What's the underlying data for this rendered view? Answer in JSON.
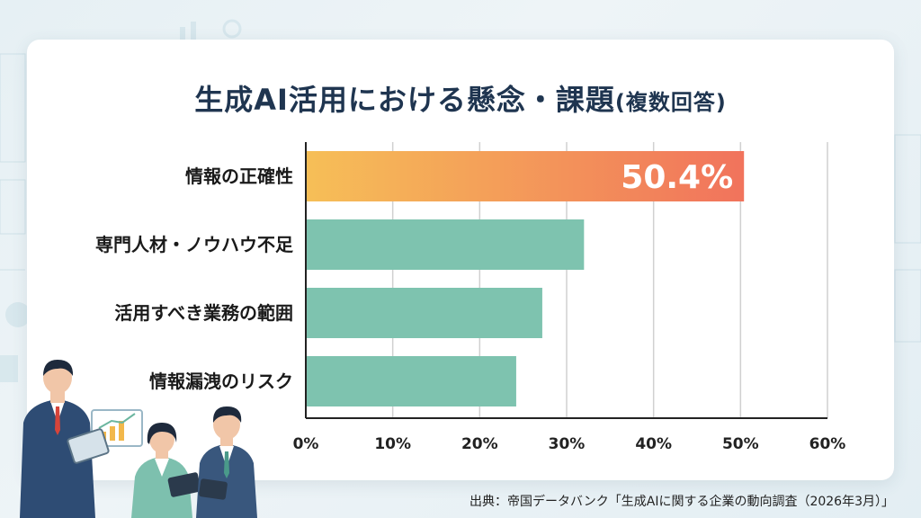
{
  "title": "生成AI活用における懸念・課題",
  "title_note": "(複数回答)",
  "source": "出典：帝国データバンク「生成AIに関する企業の動向調査（2026年3月）」",
  "chart_data": {
    "type": "bar",
    "orientation": "horizontal",
    "categories": [
      "情報の正確性",
      "専門人材・ノウハウ不足",
      "活用すべき業務の範囲",
      "情報漏洩のリスク"
    ],
    "values": [
      50.4,
      32.0,
      27.2,
      24.2
    ],
    "value_labels": [
      "50.4%",
      "",
      "",
      ""
    ],
    "xlim": [
      0,
      60
    ],
    "xticks": [
      0,
      10,
      20,
      30,
      40,
      50,
      60
    ],
    "xtick_labels": [
      "0%",
      "10%",
      "20%",
      "30%",
      "40%",
      "50%",
      "60%"
    ],
    "grid": true,
    "colors": {
      "highlight_start": "#f6bf57",
      "highlight_end": "#f1735c",
      "bar": "#7ec3af",
      "grid": "#d0d0d0",
      "axis": "#222222"
    }
  }
}
